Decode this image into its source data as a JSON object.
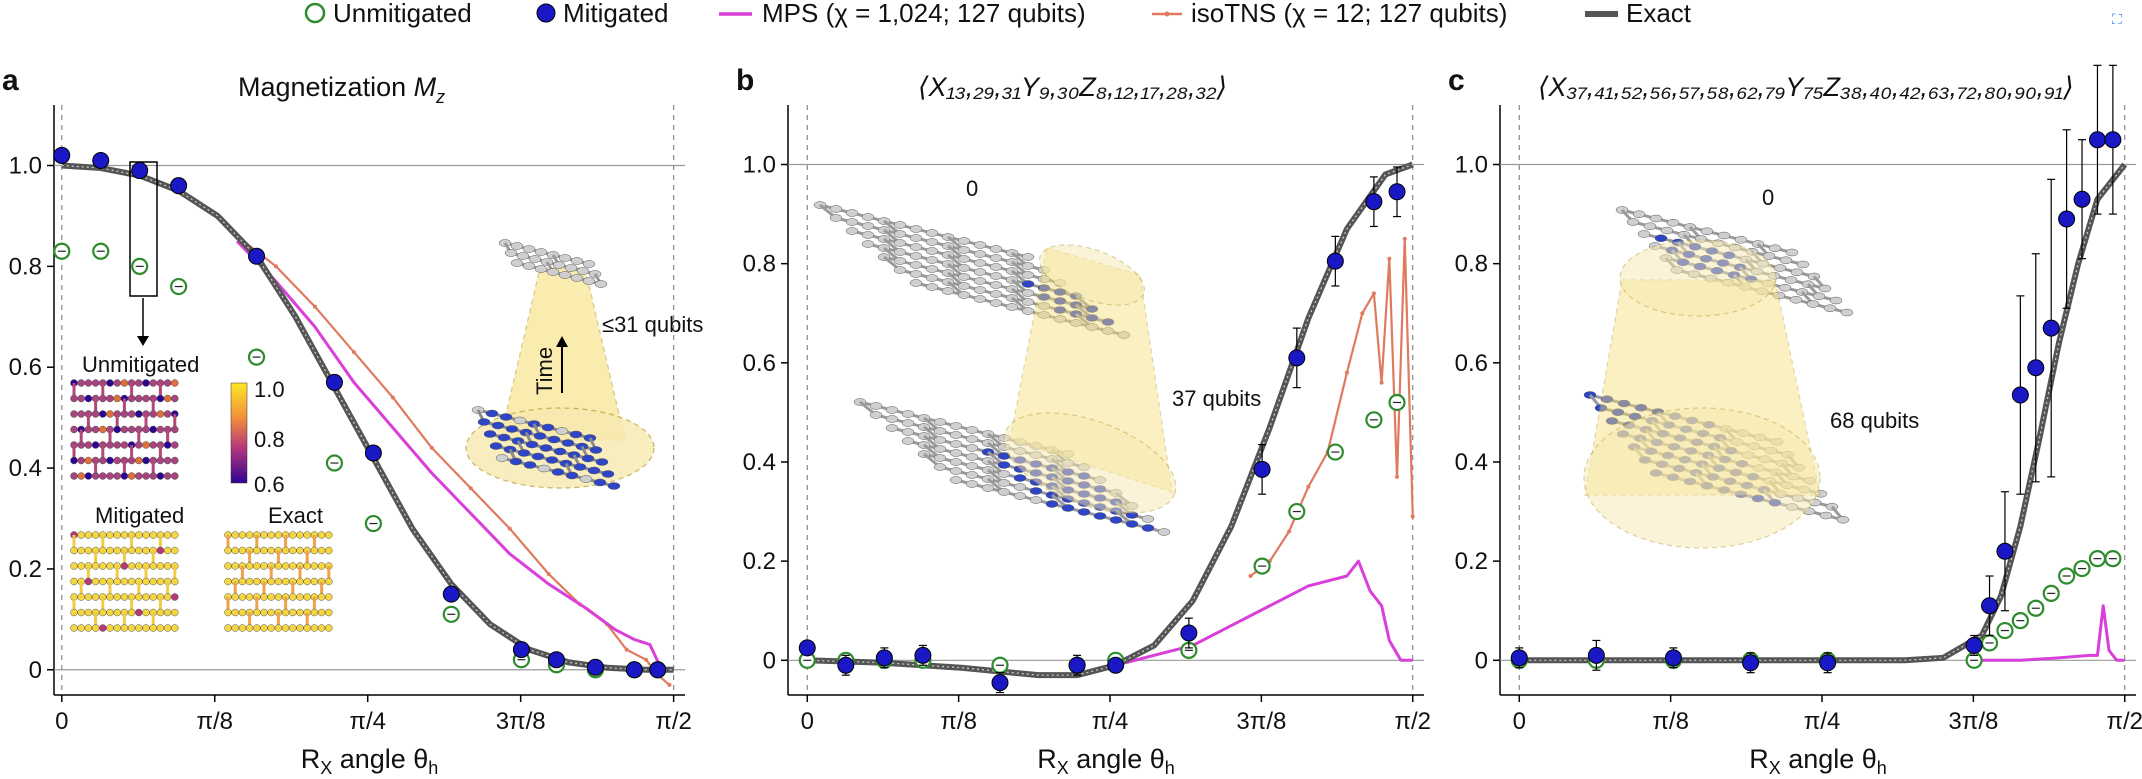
{
  "legend": {
    "unmitigated": "Unmitigated",
    "mitigated": "Mitigated",
    "mps": "MPS (χ = 1,024; 127 qubits)",
    "isotns": "isoTNS (χ = 12; 127 qubits)",
    "exact": "Exact"
  },
  "colors": {
    "unmitigated": "#2e8b2e",
    "mitigated": "#1a17c4",
    "mps": "#d93fd9",
    "isotns": "#e07a5f",
    "exact": "#555555",
    "cone": "#f7e07a"
  },
  "icons": {
    "corner": "expand-icon"
  },
  "chart_data": [
    {
      "type": "scatter",
      "panel": "a",
      "title_main": "Magnetization ",
      "title_sym": "M",
      "title_sub": "z",
      "xlabel_main": "R",
      "xlabel_sub": "X",
      "xlabel_rest": " angle θ",
      "xlabel_sub2": "h",
      "xlim": [
        -0.02,
        1.6
      ],
      "ylim": [
        -0.05,
        1.12
      ],
      "x_ticks": [
        {
          "value": 0,
          "label": "0"
        },
        {
          "value": 0.3927,
          "label": "π/8"
        },
        {
          "value": 0.7854,
          "label": "π/4"
        },
        {
          "value": 1.1781,
          "label": "3π/8"
        },
        {
          "value": 1.5708,
          "label": "π/2"
        }
      ],
      "y_ticks": [
        {
          "value": 0,
          "label": "0"
        },
        {
          "value": 0.2,
          "label": "0.2"
        },
        {
          "value": 0.4,
          "label": "0.4"
        },
        {
          "value": 0.6,
          "label": "0.6"
        },
        {
          "value": 0.8,
          "label": "0.8"
        },
        {
          "value": 1.0,
          "label": "1.0"
        }
      ],
      "exact": {
        "x": [
          0,
          0.1,
          0.2,
          0.3,
          0.4,
          0.5,
          0.6,
          0.7,
          0.8,
          0.9,
          1.0,
          1.1,
          1.2,
          1.3,
          1.4,
          1.5,
          1.5708
        ],
        "y": [
          1.0,
          0.995,
          0.98,
          0.95,
          0.9,
          0.82,
          0.7,
          0.56,
          0.42,
          0.28,
          0.17,
          0.09,
          0.04,
          0.015,
          0.004,
          0.0,
          0.0
        ]
      },
      "mps": {
        "x": [
          0.45,
          0.55,
          0.65,
          0.75,
          0.85,
          0.95,
          1.05,
          1.15,
          1.25,
          1.35,
          1.42,
          1.47,
          1.51,
          1.54,
          1.5708
        ],
        "y": [
          0.85,
          0.77,
          0.68,
          0.57,
          0.48,
          0.39,
          0.31,
          0.23,
          0.17,
          0.12,
          0.08,
          0.06,
          0.05,
          0.0,
          0.0
        ]
      },
      "isotns": {
        "x": [
          0.45,
          0.55,
          0.65,
          0.75,
          0.85,
          0.95,
          1.05,
          1.15,
          1.25,
          1.33,
          1.4,
          1.45,
          1.5,
          1.53,
          1.56
        ],
        "y": [
          0.86,
          0.8,
          0.72,
          0.63,
          0.54,
          0.44,
          0.36,
          0.28,
          0.19,
          0.13,
          0.09,
          0.04,
          0.02,
          -0.01,
          -0.03
        ]
      },
      "mitigated": {
        "x": [
          0,
          0.1,
          0.2,
          0.3,
          0.5,
          0.7,
          0.8,
          1.0,
          1.18,
          1.27,
          1.37,
          1.47,
          1.53
        ],
        "y": [
          1.02,
          1.01,
          0.99,
          0.96,
          0.82,
          0.57,
          0.43,
          0.15,
          0.04,
          0.02,
          0.005,
          0.0,
          0.0
        ],
        "err": [
          0,
          0,
          0,
          0,
          0,
          0,
          0,
          0,
          0,
          0,
          0,
          0,
          0
        ]
      },
      "unmitigated": {
        "x": [
          0,
          0.1,
          0.2,
          0.3,
          0.5,
          0.7,
          0.8,
          1.0,
          1.18,
          1.27,
          1.37,
          1.47,
          1.53
        ],
        "y": [
          0.83,
          0.83,
          0.8,
          0.76,
          0.62,
          0.41,
          0.29,
          0.11,
          0.02,
          0.01,
          0.0,
          0.0,
          0.0
        ],
        "err": [
          0,
          0,
          0,
          0,
          0,
          0,
          0,
          0,
          0,
          0,
          0,
          0,
          0
        ]
      }
    },
    {
      "type": "scatter",
      "panel": "b",
      "title_html": "⟨X₁₃,₂₉,₃₁Y₉,₃₀Z₈,₁₂,₁₇,₂₈,₃₂⟩",
      "xlabel_main": "R",
      "xlabel_sub": "X",
      "xlabel_rest": " angle θ",
      "xlabel_sub2": "h",
      "xlim": [
        -0.05,
        1.6
      ],
      "ylim": [
        -0.07,
        1.12
      ],
      "x_ticks": [
        {
          "value": 0,
          "label": "0"
        },
        {
          "value": 0.3927,
          "label": "π/8"
        },
        {
          "value": 0.7854,
          "label": "π/4"
        },
        {
          "value": 1.1781,
          "label": "3π/8"
        },
        {
          "value": 1.5708,
          "label": "π/2"
        }
      ],
      "y_ticks": [
        {
          "value": 0,
          "label": "0"
        },
        {
          "value": 0.2,
          "label": "0.2"
        },
        {
          "value": 0.4,
          "label": "0.4"
        },
        {
          "value": 0.6,
          "label": "0.6"
        },
        {
          "value": 0.8,
          "label": "0.8"
        },
        {
          "value": 1.0,
          "label": "1.0"
        }
      ],
      "exact": {
        "x": [
          0,
          0.2,
          0.4,
          0.6,
          0.7,
          0.8,
          0.9,
          1.0,
          1.1,
          1.2,
          1.3,
          1.4,
          1.5,
          1.5708
        ],
        "y": [
          0.0,
          -0.005,
          -0.015,
          -0.03,
          -0.03,
          -0.01,
          0.03,
          0.12,
          0.27,
          0.47,
          0.69,
          0.87,
          0.98,
          1.0
        ]
      },
      "mps": {
        "x": [
          0.8,
          0.9,
          1.0,
          1.1,
          1.2,
          1.3,
          1.4,
          1.43,
          1.46,
          1.49,
          1.51,
          1.54,
          1.5708
        ],
        "y": [
          -0.01,
          0.01,
          0.03,
          0.07,
          0.11,
          0.15,
          0.17,
          0.2,
          0.14,
          0.11,
          0.04,
          0.0,
          0.0
        ]
      },
      "isotns": {
        "x": [
          1.15,
          1.2,
          1.25,
          1.3,
          1.35,
          1.4,
          1.44,
          1.47,
          1.49,
          1.51,
          1.53,
          1.55,
          1.5708
        ],
        "y": [
          0.17,
          0.2,
          0.26,
          0.35,
          0.42,
          0.58,
          0.7,
          0.74,
          0.56,
          0.81,
          0.37,
          0.85,
          0.29
        ]
      },
      "mitigated": {
        "x": [
          0,
          0.1,
          0.2,
          0.3,
          0.5,
          0.7,
          0.8,
          0.99,
          1.18,
          1.27,
          1.37,
          1.47,
          1.53
        ],
        "y": [
          0.025,
          -0.01,
          0.005,
          0.01,
          -0.045,
          -0.01,
          -0.01,
          0.055,
          0.385,
          0.61,
          0.805,
          0.925,
          0.945
        ],
        "err": [
          0.01,
          0.02,
          0.02,
          0.02,
          0.02,
          0.02,
          0.015,
          0.03,
          0.05,
          0.06,
          0.05,
          0.05,
          0.05
        ]
      },
      "unmitigated": {
        "x": [
          0,
          0.1,
          0.2,
          0.3,
          0.5,
          0.7,
          0.8,
          0.99,
          1.18,
          1.27,
          1.37,
          1.47,
          1.53
        ],
        "y": [
          0.0,
          0.0,
          0.0,
          0.0,
          -0.01,
          -0.01,
          0.0,
          0.02,
          0.19,
          0.3,
          0.42,
          0.485,
          0.52
        ],
        "err": [
          0.005,
          0.005,
          0.005,
          0.005,
          0.01,
          0.005,
          0.005,
          0.01,
          0.01,
          0.01,
          0.01,
          0.01,
          0.01
        ]
      }
    },
    {
      "type": "scatter",
      "panel": "c",
      "title_html": "⟨X₃₇,₄₁,₅₂,₅₆,₅₇,₅₈,₆₂,₇₉Y₇₅Z₃₈,₄₀,₄₂,₆₃,₇₂,₈₀,₉₀,₉₁⟩",
      "xlabel_main": "R",
      "xlabel_sub": "X",
      "xlabel_rest": " angle θ",
      "xlabel_sub2": "h",
      "xlim": [
        -0.05,
        1.6
      ],
      "ylim": [
        -0.07,
        1.12
      ],
      "x_ticks": [
        {
          "value": 0,
          "label": "0"
        },
        {
          "value": 0.3927,
          "label": "π/8"
        },
        {
          "value": 0.7854,
          "label": "π/4"
        },
        {
          "value": 1.1781,
          "label": "3π/8"
        },
        {
          "value": 1.5708,
          "label": "π/2"
        }
      ],
      "y_ticks": [
        {
          "value": 0,
          "label": "0"
        },
        {
          "value": 0.2,
          "label": "0.2"
        },
        {
          "value": 0.4,
          "label": "0.4"
        },
        {
          "value": 0.6,
          "label": "0.6"
        },
        {
          "value": 0.8,
          "label": "0.8"
        },
        {
          "value": 1.0,
          "label": "1.0"
        }
      ],
      "exact": {
        "x": [
          0,
          0.2,
          0.4,
          0.6,
          0.8,
          1.0,
          1.1,
          1.2,
          1.25,
          1.3,
          1.35,
          1.4,
          1.45,
          1.5,
          1.5708
        ],
        "y": [
          0.0,
          0.0,
          0.0,
          0.0,
          0.0,
          0.0,
          0.005,
          0.05,
          0.13,
          0.27,
          0.45,
          0.64,
          0.8,
          0.93,
          1.0
        ]
      },
      "mps": {
        "x": [
          1.18,
          1.3,
          1.4,
          1.48,
          1.5,
          1.515,
          1.53,
          1.55,
          1.5708
        ],
        "y": [
          0.0,
          0.0,
          0.005,
          0.01,
          0.01,
          0.11,
          0.02,
          0.0,
          0.0
        ]
      },
      "mitigated": {
        "x": [
          0,
          0.2,
          0.4,
          0.6,
          0.8,
          1.18,
          1.22,
          1.26,
          1.3,
          1.34,
          1.38,
          1.42,
          1.46,
          1.5,
          1.54
        ],
        "y": [
          0.005,
          0.01,
          0.005,
          -0.005,
          -0.005,
          0.03,
          0.11,
          0.22,
          0.535,
          0.59,
          0.67,
          0.89,
          0.93,
          1.05,
          1.05
        ],
        "err": [
          0.02,
          0.03,
          0.02,
          0.02,
          0.02,
          0.02,
          0.06,
          0.12,
          0.2,
          0.23,
          0.3,
          0.18,
          0.12,
          0.15,
          0.15
        ]
      },
      "unmitigated": {
        "x": [
          0,
          0.2,
          0.4,
          0.6,
          0.8,
          1.18,
          1.22,
          1.26,
          1.3,
          1.34,
          1.38,
          1.42,
          1.46,
          1.5,
          1.54
        ],
        "y": [
          0.0,
          0.0,
          0.0,
          0.0,
          0.0,
          0.0,
          0.035,
          0.06,
          0.08,
          0.105,
          0.135,
          0.17,
          0.185,
          0.205,
          0.205
        ],
        "err": [
          0.003,
          0.003,
          0.003,
          0.003,
          0.003,
          0.003,
          0.008,
          0.008,
          0.008,
          0.008,
          0.008,
          0.008,
          0.008,
          0.008,
          0.008
        ]
      }
    }
  ],
  "insets": {
    "unmitigated_label": "Unmitigated",
    "mitigated_label": "Mitigated",
    "exact_label": "Exact",
    "colorbar_ticks": [
      "1.0",
      "0.8",
      "0.6"
    ],
    "cone_a_label": "≤31 qubits",
    "cone_a_time": "Time",
    "cone_b_label": "37 qubits",
    "cone_b_zero": "0",
    "cone_c_label": "68 qubits",
    "cone_c_zero": "0"
  }
}
